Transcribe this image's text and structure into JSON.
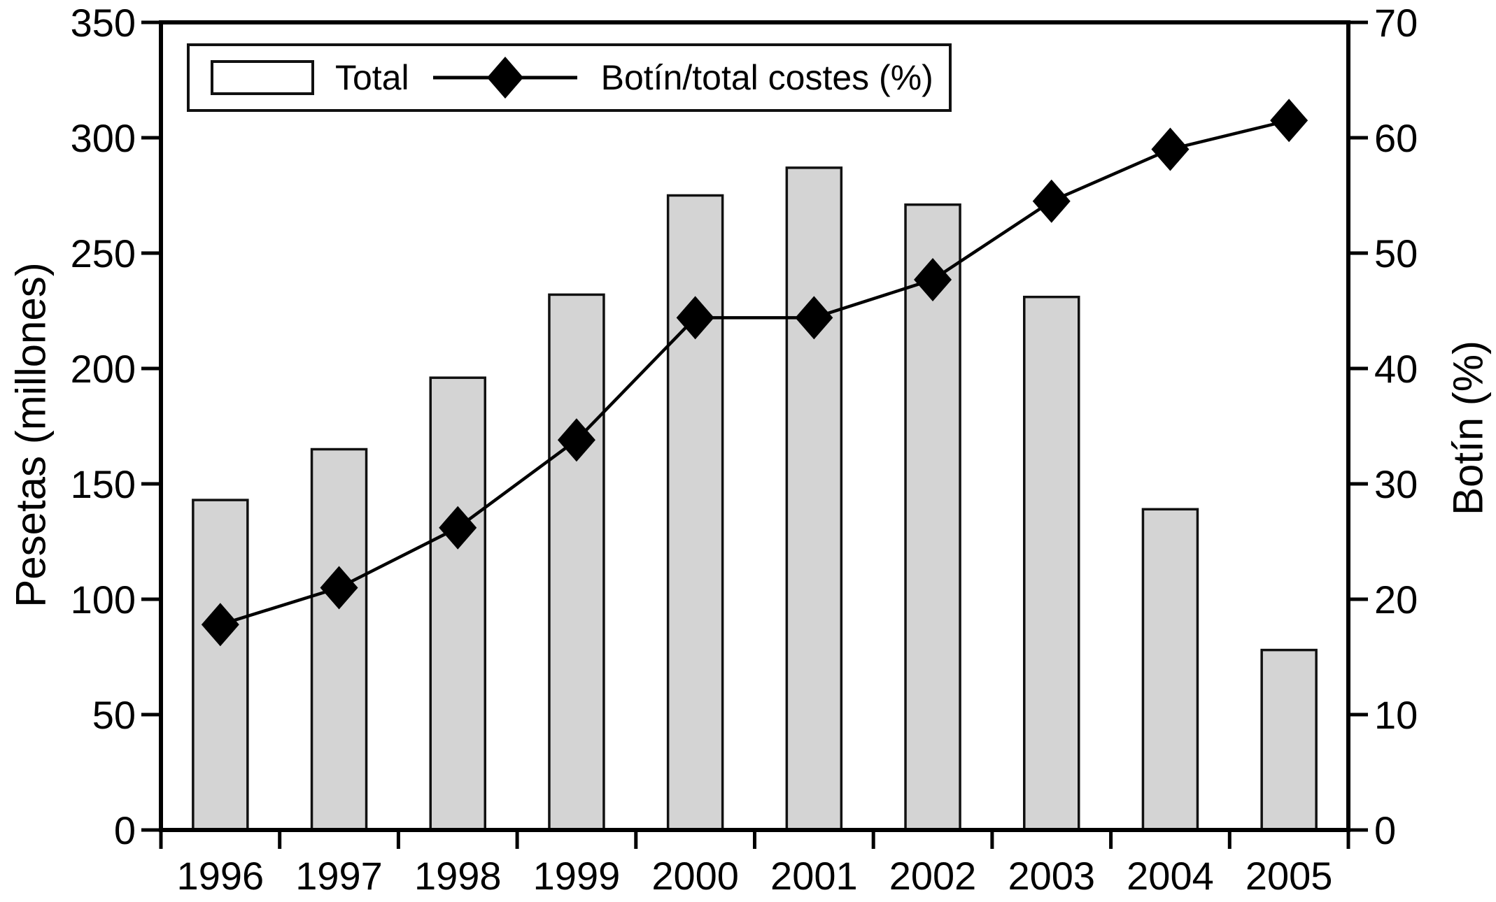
{
  "chart_data": {
    "type": "bar",
    "subtype": "bar+line-combo",
    "categories": [
      "1996",
      "1997",
      "1998",
      "1999",
      "2000",
      "2001",
      "2002",
      "2003",
      "2004",
      "2005"
    ],
    "series": [
      {
        "name": "Total",
        "type": "bar",
        "axis": "left",
        "values": [
          143,
          165,
          196,
          232,
          275,
          287,
          271,
          231,
          139,
          78
        ],
        "fill": "#d4d4d4",
        "stroke": "#111111"
      },
      {
        "name": "Botín/total costes (%)",
        "type": "line",
        "axis": "right",
        "marker": "diamond",
        "values": [
          17.8,
          21,
          26.2,
          33.8,
          44.4,
          44.4,
          47.7,
          54.5,
          59,
          61.5
        ],
        "color": "#000000"
      }
    ],
    "left_axis": {
      "label": "Pesetas (millones)",
      "min": 0,
      "max": 350,
      "tick_step": 50,
      "ticks": [
        350,
        300,
        250,
        200,
        150,
        100,
        50,
        0
      ]
    },
    "right_axis": {
      "label": "Botín (%)",
      "min": 0,
      "max": 70,
      "tick_step": 10,
      "ticks": [
        70,
        60,
        50,
        40,
        30,
        20,
        10,
        0
      ]
    },
    "grid": false,
    "legend_position": "top-left-inside",
    "background": "#ffffff",
    "frame_color": "#000000"
  },
  "legend": {
    "total_label": "Total",
    "line_label": "Botín/total costes (%)"
  }
}
